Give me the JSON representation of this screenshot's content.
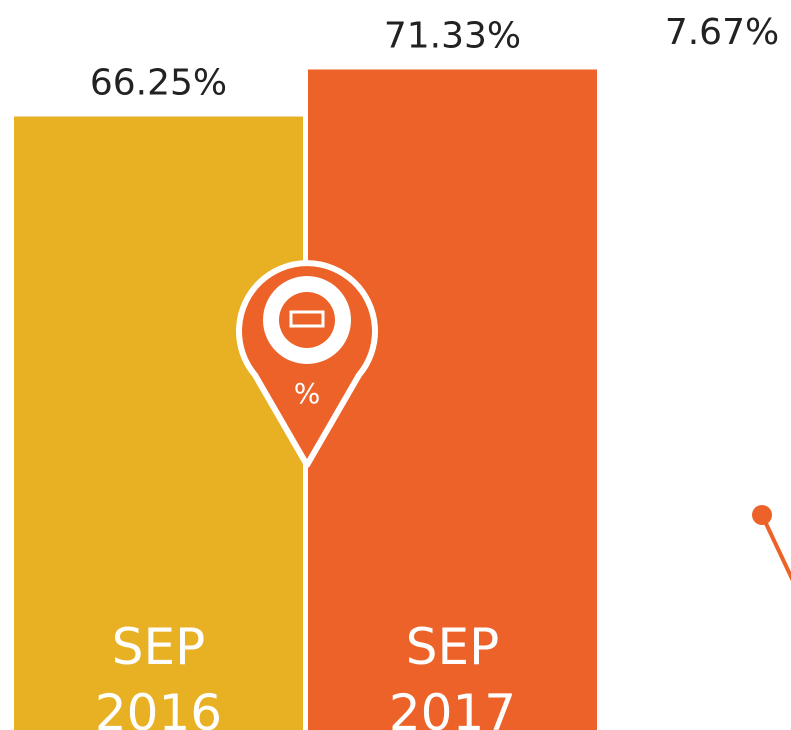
{
  "chart_data": {
    "type": "bar",
    "categories": [
      "SEP 2016",
      "SEP 2017"
    ],
    "values": [
      66.25,
      71.33
    ],
    "value_labels": [
      "66.25%",
      "71.33%"
    ],
    "colors": [
      "#e8b023",
      "#ec6228"
    ],
    "annotation": "7.67%",
    "icon_label": "%"
  }
}
